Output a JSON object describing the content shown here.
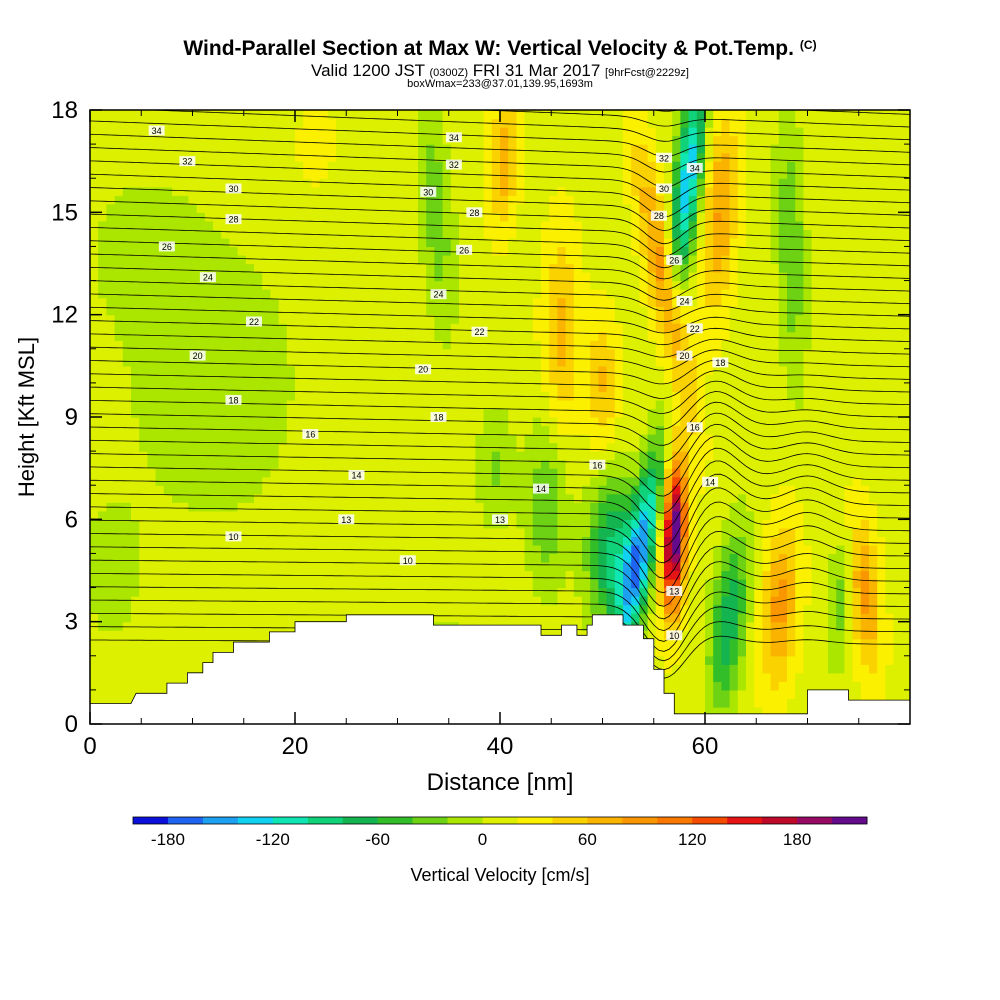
{
  "title": {
    "main": "Wind-Parallel Section at Max W: Vertical Velocity & Pot.Temp.",
    "main_mark": "(C)",
    "valid_prefix": "Valid 1200 JST",
    "valid_utc": "(0300Z)",
    "valid_date": "FRI 31 Mar 2017",
    "forecast": "[9hrFcst@2229z]",
    "box": "boxWmax=233@37.01,139.95,1693m"
  },
  "chart_data": {
    "type": "heatmap",
    "xlabel": "Distance [nm]",
    "ylabel": "Height [Kft MSL]",
    "xlim": [
      0,
      80
    ],
    "ylim": [
      0,
      18
    ],
    "x_ticks": [
      0,
      20,
      40,
      60
    ],
    "y_ticks": [
      0,
      3,
      6,
      9,
      12,
      15,
      18
    ],
    "colorbar": {
      "label": "Vertical Velocity [cm/s]",
      "levels": [
        -200,
        -180,
        -160,
        -140,
        -120,
        -100,
        -80,
        -60,
        -40,
        -20,
        0,
        20,
        40,
        60,
        80,
        100,
        120,
        140,
        160,
        180,
        200,
        220
      ],
      "tick_values": [
        -180,
        -120,
        -60,
        0,
        60,
        120,
        180
      ],
      "colors": [
        "#0a10d8",
        "#1e64f0",
        "#1ea0f0",
        "#10d2f0",
        "#10e6b4",
        "#10d278",
        "#14b450",
        "#32be28",
        "#6ed214",
        "#aae600",
        "#dcf000",
        "#faf000",
        "#fad200",
        "#fab400",
        "#fa9600",
        "#fa7800",
        "#f54b00",
        "#e61414",
        "#be0a28",
        "#960a64",
        "#640a8c"
      ]
    },
    "terrain": [
      [
        0,
        0.6
      ],
      [
        2,
        0.6
      ],
      [
        4,
        0.6
      ],
      [
        4.5,
        0.9
      ],
      [
        7.5,
        0.9
      ],
      [
        7.5,
        1.2
      ],
      [
        9.5,
        1.2
      ],
      [
        9.5,
        1.5
      ],
      [
        11,
        1.5
      ],
      [
        11,
        1.8
      ],
      [
        12,
        1.8
      ],
      [
        12,
        2.1
      ],
      [
        14,
        2.1
      ],
      [
        14,
        2.4
      ],
      [
        17.5,
        2.4
      ],
      [
        17.5,
        2.7
      ],
      [
        20,
        2.7
      ],
      [
        20,
        3.0
      ],
      [
        25,
        3.0
      ],
      [
        25,
        3.2
      ],
      [
        33.5,
        3.2
      ],
      [
        33.5,
        2.9
      ],
      [
        44,
        2.9
      ],
      [
        44,
        2.6
      ],
      [
        46,
        2.6
      ],
      [
        46,
        2.9
      ],
      [
        47.5,
        2.9
      ],
      [
        47.5,
        2.6
      ],
      [
        48.5,
        2.6
      ],
      [
        48.5,
        2.9
      ],
      [
        49,
        2.9
      ],
      [
        49,
        3.2
      ],
      [
        52,
        3.2
      ],
      [
        52,
        2.9
      ],
      [
        54,
        2.9
      ],
      [
        54,
        2.5
      ],
      [
        55,
        2.5
      ],
      [
        55,
        1.6
      ],
      [
        56,
        1.6
      ],
      [
        56,
        0.9
      ],
      [
        57,
        0.9
      ],
      [
        57,
        0.3
      ],
      [
        70,
        0.3
      ],
      [
        70,
        1.0
      ],
      [
        74,
        1.0
      ],
      [
        74,
        0.7
      ],
      [
        80,
        0.7
      ]
    ],
    "theta_labels": [
      {
        "x": 6.5,
        "y": 17.4,
        "v": "34"
      },
      {
        "x": 9.5,
        "y": 16.5,
        "v": "32"
      },
      {
        "x": 14,
        "y": 15.7,
        "v": "30"
      },
      {
        "x": 14,
        "y": 14.8,
        "v": "28"
      },
      {
        "x": 7.5,
        "y": 14.0,
        "v": "26"
      },
      {
        "x": 11.5,
        "y": 13.1,
        "v": "24"
      },
      {
        "x": 16,
        "y": 11.8,
        "v": "22"
      },
      {
        "x": 10.5,
        "y": 10.8,
        "v": "20"
      },
      {
        "x": 14,
        "y": 9.5,
        "v": "18"
      },
      {
        "x": 21.5,
        "y": 8.5,
        "v": "16"
      },
      {
        "x": 26,
        "y": 7.3,
        "v": "14"
      },
      {
        "x": 25,
        "y": 6.0,
        "v": "13"
      },
      {
        "x": 14,
        "y": 5.5,
        "v": "10"
      },
      {
        "x": 31,
        "y": 4.8,
        "v": "10"
      },
      {
        "x": 35.5,
        "y": 17.2,
        "v": "34"
      },
      {
        "x": 35.5,
        "y": 16.4,
        "v": "32"
      },
      {
        "x": 33,
        "y": 15.6,
        "v": "30"
      },
      {
        "x": 37.5,
        "y": 15.0,
        "v": "28"
      },
      {
        "x": 36.5,
        "y": 13.9,
        "v": "26"
      },
      {
        "x": 34,
        "y": 12.6,
        "v": "24"
      },
      {
        "x": 38,
        "y": 11.5,
        "v": "22"
      },
      {
        "x": 32.5,
        "y": 10.4,
        "v": "20"
      },
      {
        "x": 34,
        "y": 9.0,
        "v": "18"
      },
      {
        "x": 40,
        "y": 6.0,
        "v": "13"
      },
      {
        "x": 44,
        "y": 6.9,
        "v": "14"
      },
      {
        "x": 49.5,
        "y": 7.6,
        "v": "16"
      },
      {
        "x": 56,
        "y": 16.6,
        "v": "32"
      },
      {
        "x": 59,
        "y": 16.3,
        "v": "34"
      },
      {
        "x": 56,
        "y": 15.7,
        "v": "30"
      },
      {
        "x": 55.5,
        "y": 14.9,
        "v": "28"
      },
      {
        "x": 57,
        "y": 13.6,
        "v": "26"
      },
      {
        "x": 58,
        "y": 12.4,
        "v": "24"
      },
      {
        "x": 59,
        "y": 11.6,
        "v": "22"
      },
      {
        "x": 58,
        "y": 10.8,
        "v": "20"
      },
      {
        "x": 61.5,
        "y": 10.6,
        "v": "18"
      },
      {
        "x": 59,
        "y": 8.7,
        "v": "16"
      },
      {
        "x": 60.5,
        "y": 7.1,
        "v": "14"
      },
      {
        "x": 57,
        "y": 3.9,
        "v": "13"
      },
      {
        "x": 57,
        "y": 2.6,
        "v": "10"
      }
    ]
  }
}
